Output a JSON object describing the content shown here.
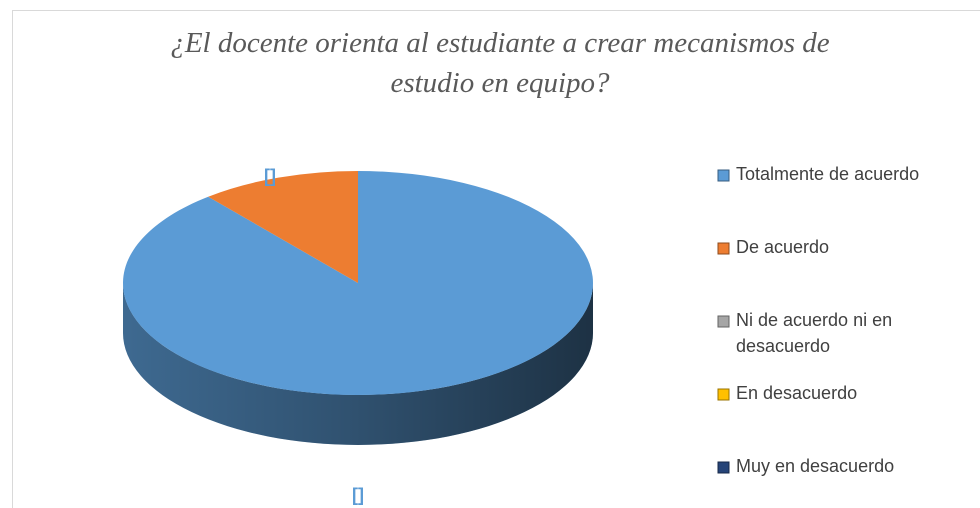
{
  "chart_data": {
    "type": "pie",
    "title": "¿El docente orienta al estudiante a crear mecanismos de estudio en equipo?",
    "categories": [
      "Totalmente de acuerdo",
      "De acuerdo",
      "Ni de acuerdo ni en desacuerdo",
      "En desacuerdo",
      "Muy en desacuerdo"
    ],
    "values": [
      89,
      11,
      0,
      0,
      0
    ],
    "colors": [
      "#5b9bd5",
      "#ed7d31",
      "#a5a5a5",
      "#ffc000",
      "#264478"
    ],
    "annotations": [
      "[]",
      "[]"
    ],
    "legend": "right"
  }
}
